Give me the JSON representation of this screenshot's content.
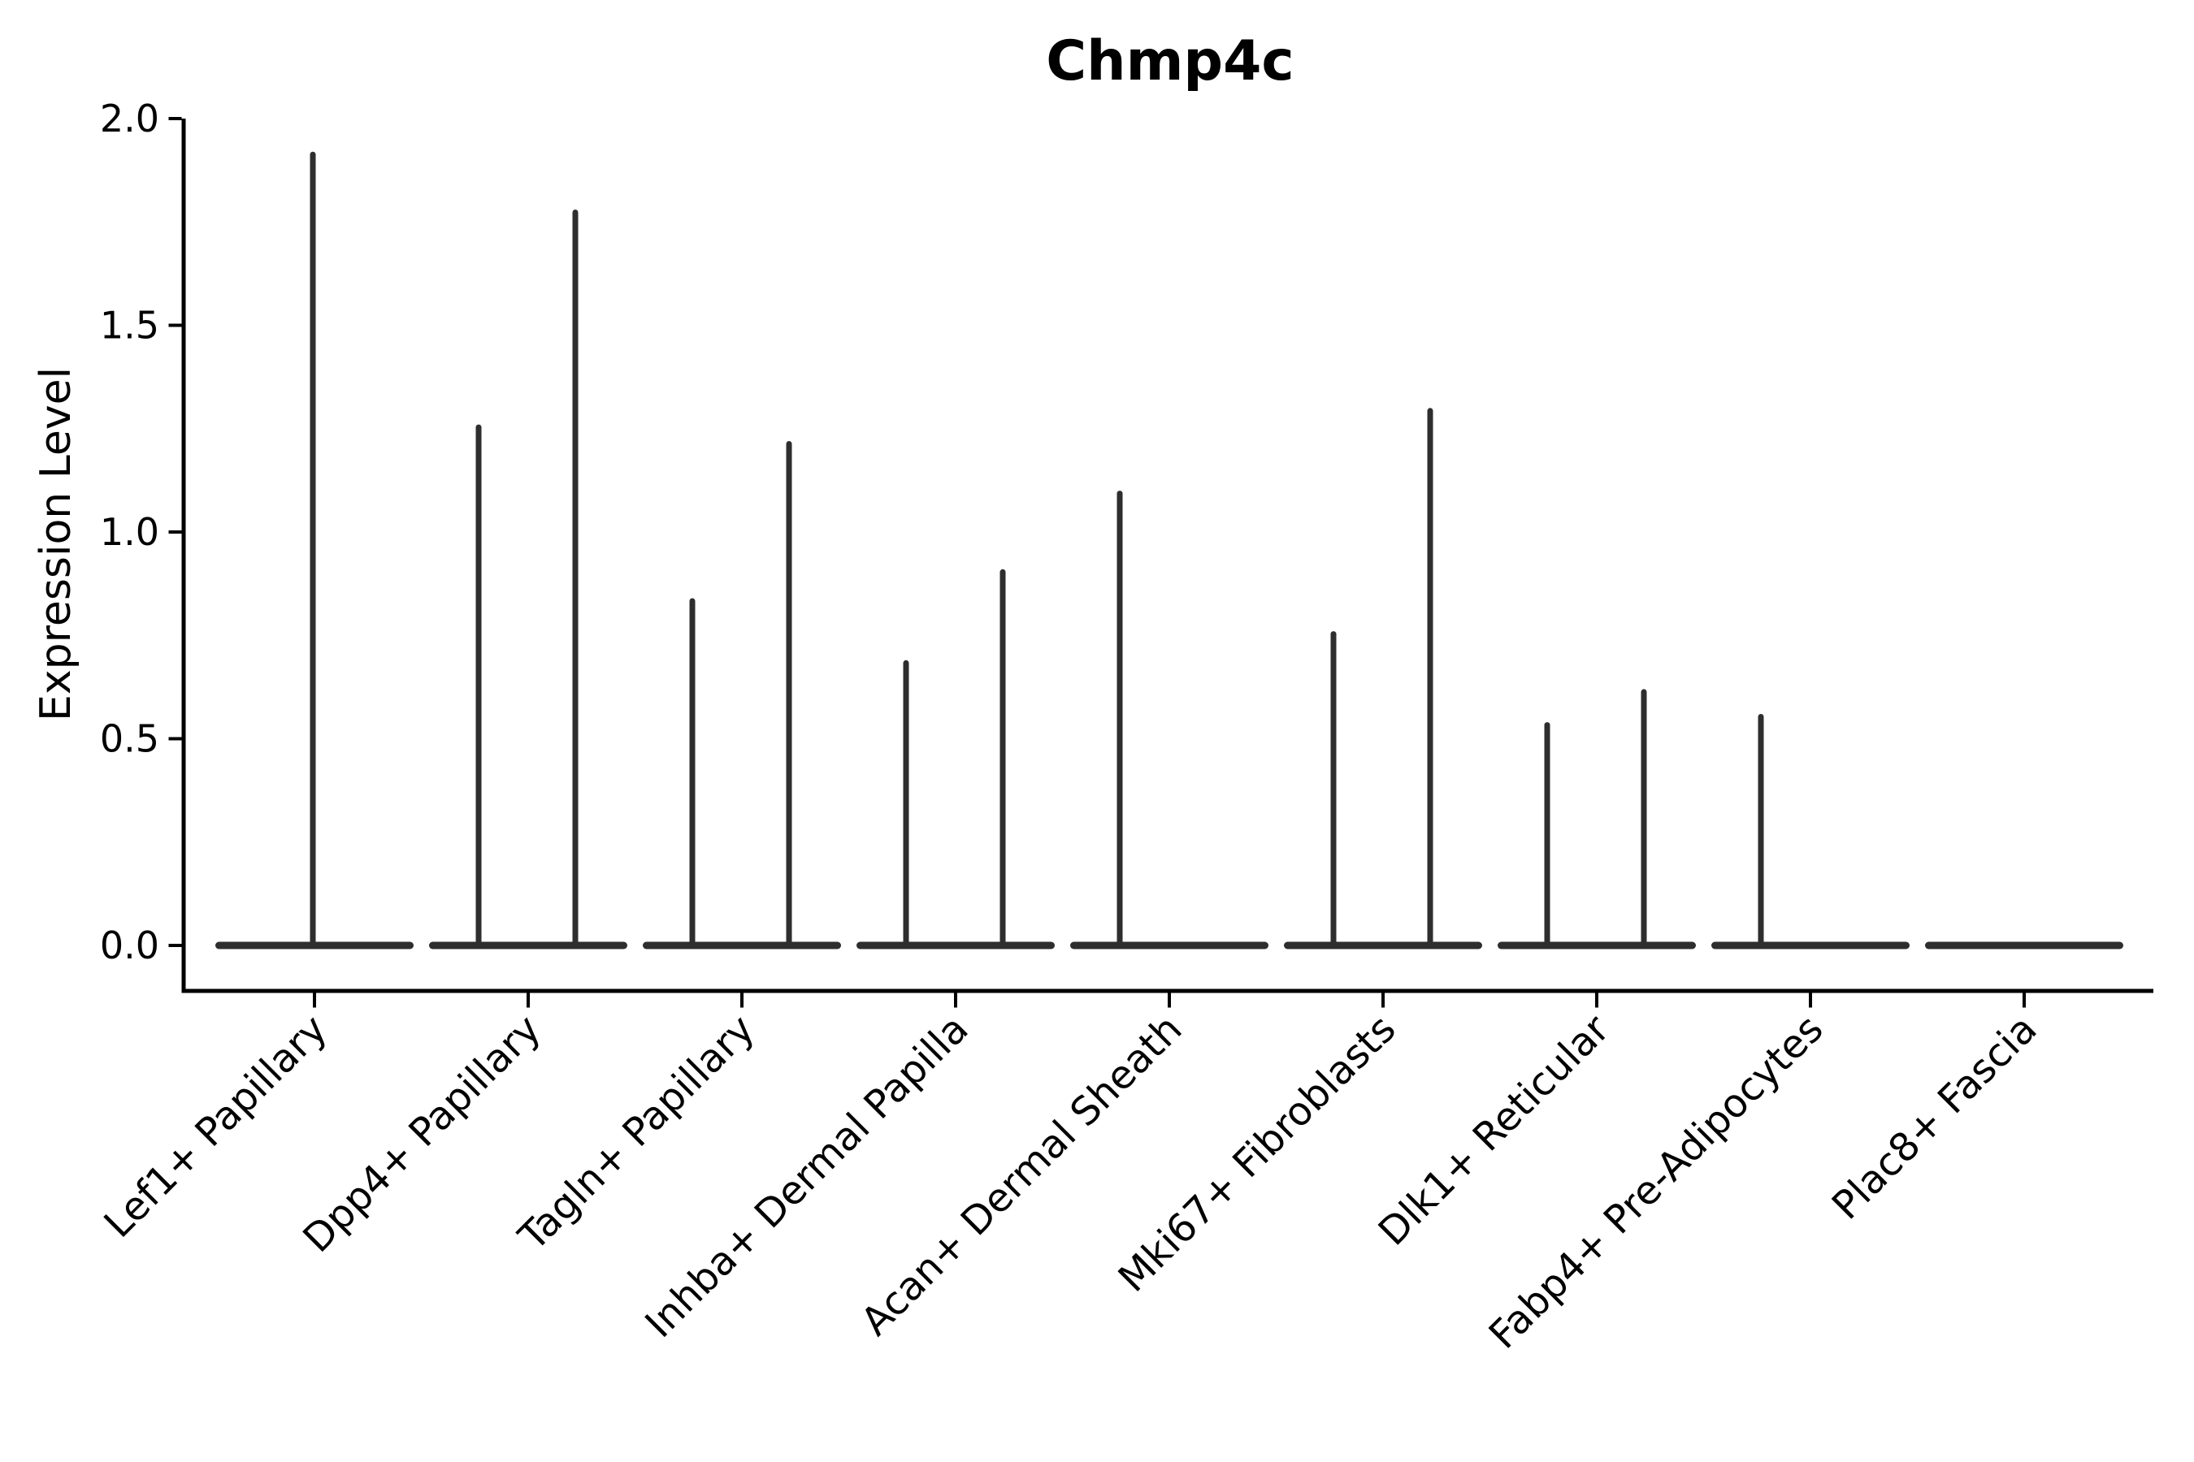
{
  "chart_data": {
    "type": "violin",
    "title": "Chmp4c",
    "xlabel": "",
    "ylabel": "Expression Level",
    "ylim": [
      0,
      2.0
    ],
    "grid": false,
    "legend": "none",
    "yticks": [
      {
        "value": 0.0,
        "label": "0.0"
      },
      {
        "value": 0.5,
        "label": "0.5"
      },
      {
        "value": 1.0,
        "label": "1.0"
      },
      {
        "value": 1.5,
        "label": "1.5"
      },
      {
        "value": 2.0,
        "label": "2.0"
      }
    ],
    "categories": [
      "Lef1+ Papillary",
      "Dpp4+ Papillary",
      "Tagln+ Papillary",
      "Inhba+ Dermal Papilla",
      "Acan+ Dermal Sheath",
      "Mki67+ Fibroblasts",
      "Dlk1+ Reticular",
      "Fabp4+ Pre-Adipocytes",
      "Plac8+ Fascia"
    ],
    "violins": [
      {
        "category": "Lef1+ Papillary",
        "spikes": [
          {
            "position": "center",
            "max_expression": 1.92
          }
        ]
      },
      {
        "category": "Dpp4+ Papillary",
        "spikes": [
          {
            "position": "left",
            "max_expression": 1.26
          },
          {
            "position": "right",
            "max_expression": 1.78
          }
        ]
      },
      {
        "category": "Tagln+ Papillary",
        "spikes": [
          {
            "position": "left",
            "max_expression": 0.84
          },
          {
            "position": "right",
            "max_expression": 1.22
          }
        ]
      },
      {
        "category": "Inhba+ Dermal Papilla",
        "spikes": [
          {
            "position": "left",
            "max_expression": 0.69
          },
          {
            "position": "right",
            "max_expression": 0.91
          }
        ]
      },
      {
        "category": "Acan+ Dermal Sheath",
        "spikes": [
          {
            "position": "left",
            "max_expression": 1.1
          }
        ]
      },
      {
        "category": "Mki67+ Fibroblasts",
        "spikes": [
          {
            "position": "left",
            "max_expression": 0.76
          },
          {
            "position": "right",
            "max_expression": 1.3
          }
        ]
      },
      {
        "category": "Dlk1+ Reticular",
        "spikes": [
          {
            "position": "left",
            "max_expression": 0.54
          },
          {
            "position": "right",
            "max_expression": 0.62
          }
        ]
      },
      {
        "category": "Fabp4+ Pre-Adipocytes",
        "spikes": [
          {
            "position": "left",
            "max_expression": 0.56
          }
        ]
      },
      {
        "category": "Plac8+ Fascia",
        "spikes": []
      }
    ],
    "baseline_value": 0.0,
    "colors": {
      "violin": "#2e2e2e",
      "axis": "#000000",
      "background": "#ffffff"
    }
  }
}
